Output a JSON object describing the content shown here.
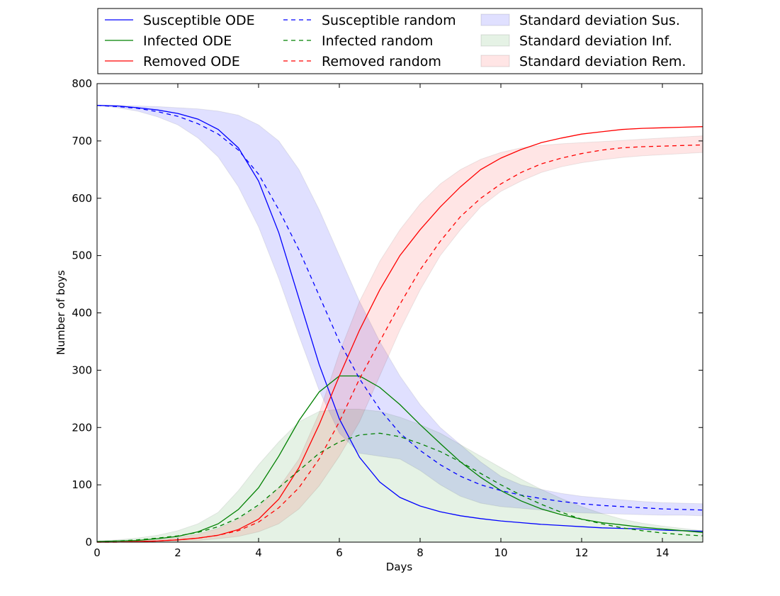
{
  "chart_data": {
    "type": "line",
    "title": "",
    "xlabel": "Days",
    "ylabel": "Number of boys",
    "xlim": [
      0,
      15
    ],
    "ylim": [
      0,
      800
    ],
    "xticks": [
      0,
      2,
      4,
      6,
      8,
      10,
      12,
      14
    ],
    "yticks": [
      0,
      100,
      200,
      300,
      400,
      500,
      600,
      700,
      800
    ],
    "grid": false,
    "legend_position": "top, above plot, 3 columns",
    "x": [
      0,
      0.5,
      1,
      1.5,
      2,
      2.5,
      3,
      3.5,
      4,
      4.5,
      5,
      5.5,
      6,
      6.5,
      7,
      7.5,
      8,
      8.5,
      9,
      9.5,
      10,
      10.5,
      11,
      11.5,
      12,
      12.5,
      13,
      13.5,
      14,
      14.5,
      15
    ],
    "series": [
      {
        "name": "Susceptible ODE",
        "color": "#0000ff",
        "style": "solid",
        "values": [
          762,
          761,
          758,
          754,
          748,
          738,
          720,
          688,
          630,
          540,
          425,
          310,
          215,
          148,
          105,
          78,
          63,
          53,
          46,
          41,
          37,
          34,
          31,
          29,
          27,
          25,
          24,
          23,
          21,
          20,
          19
        ]
      },
      {
        "name": "Infected ODE",
        "color": "#008000",
        "style": "solid",
        "values": [
          1,
          2,
          3,
          6,
          10,
          18,
          32,
          57,
          95,
          150,
          212,
          262,
          290,
          290,
          270,
          240,
          205,
          172,
          140,
          113,
          90,
          72,
          58,
          48,
          40,
          34,
          30,
          26,
          23,
          20,
          17
        ]
      },
      {
        "name": "Removed ODE",
        "color": "#ff0000",
        "style": "solid",
        "values": [
          0,
          0,
          1,
          2,
          4,
          7,
          12,
          22,
          40,
          75,
          130,
          205,
          290,
          370,
          440,
          500,
          545,
          585,
          620,
          650,
          670,
          685,
          697,
          705,
          712,
          716,
          720,
          722,
          723,
          724,
          725
        ]
      },
      {
        "name": "Susceptible random",
        "color": "#0000ff",
        "style": "dashed",
        "values": [
          762,
          760,
          757,
          751,
          743,
          730,
          712,
          684,
          642,
          580,
          510,
          430,
          350,
          285,
          232,
          190,
          160,
          135,
          115,
          100,
          90,
          82,
          76,
          71,
          67,
          64,
          62,
          60,
          58,
          57,
          56
        ]
      },
      {
        "name": "Infected random",
        "color": "#008000",
        "style": "dashed",
        "values": [
          1,
          2,
          4,
          7,
          11,
          17,
          27,
          42,
          65,
          95,
          125,
          155,
          175,
          187,
          190,
          184,
          172,
          158,
          140,
          120,
          100,
          82,
          66,
          52,
          40,
          32,
          25,
          20,
          16,
          13,
          11
        ]
      },
      {
        "name": "Removed random",
        "color": "#ff0000",
        "style": "dashed",
        "values": [
          0,
          0,
          1,
          2,
          4,
          7,
          12,
          20,
          35,
          60,
          95,
          145,
          210,
          285,
          350,
          415,
          475,
          525,
          568,
          600,
          625,
          645,
          660,
          670,
          678,
          684,
          688,
          690,
          691,
          692,
          693
        ]
      }
    ],
    "bands": [
      {
        "name": "Standard deviation Sus.",
        "color": "#0000ff",
        "opacity": 0.12,
        "upper": [
          762,
          762,
          761,
          760,
          758,
          756,
          752,
          745,
          728,
          700,
          650,
          580,
          500,
          420,
          350,
          290,
          240,
          200,
          170,
          140,
          115,
          100,
          92,
          85,
          80,
          77,
          74,
          71,
          69,
          68,
          67
        ],
        "lower": [
          762,
          758,
          752,
          742,
          728,
          705,
          672,
          620,
          550,
          460,
          360,
          265,
          190,
          155,
          150,
          145,
          125,
          100,
          80,
          68,
          62,
          59,
          56,
          53,
          51,
          50,
          49,
          48,
          47,
          47,
          46
        ]
      },
      {
        "name": "Standard deviation Inf.",
        "color": "#008000",
        "opacity": 0.1,
        "upper": [
          2,
          4,
          7,
          12,
          20,
          32,
          52,
          90,
          135,
          175,
          210,
          228,
          232,
          232,
          228,
          218,
          205,
          190,
          170,
          150,
          130,
          110,
          92,
          76,
          62,
          50,
          40,
          33,
          28,
          24,
          20
        ]
      },
      {
        "name": "Standard deviation Rem.",
        "color": "#ff0000",
        "opacity": 0.1,
        "upper": [
          0,
          1,
          2,
          4,
          8,
          14,
          24,
          40,
          62,
          95,
          145,
          225,
          330,
          420,
          490,
          545,
          590,
          625,
          650,
          668,
          680,
          688,
          692,
          695,
          697,
          699,
          701,
          703,
          705,
          707,
          709
        ],
        "lower": [
          0,
          0,
          0,
          1,
          2,
          3,
          6,
          10,
          18,
          32,
          58,
          98,
          150,
          210,
          290,
          370,
          440,
          500,
          545,
          585,
          612,
          630,
          645,
          655,
          662,
          667,
          671,
          674,
          676,
          678,
          680
        ]
      }
    ]
  }
}
